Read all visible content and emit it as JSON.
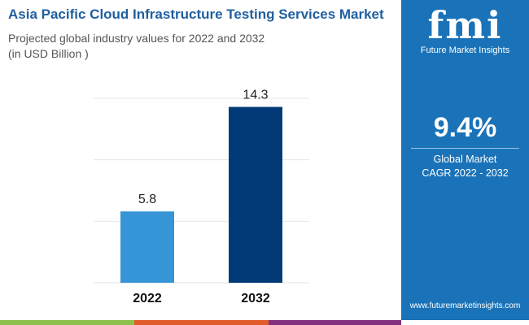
{
  "header": {
    "title": "Asia Pacific Cloud Infrastructure Testing Services Market",
    "subtitle_line1": "Projected global industry values for 2022 and 2032",
    "subtitle_line2": "(in USD Billion )"
  },
  "chart_data": {
    "type": "bar",
    "categories": [
      "2022",
      "2032"
    ],
    "values": [
      5.8,
      14.3
    ],
    "data_labels": [
      "5.8",
      "14.3"
    ],
    "ylim": [
      0,
      15
    ],
    "grid": true,
    "colors": [
      "#3595d6",
      "#023a78"
    ]
  },
  "panel": {
    "logo_text": "fmi",
    "brand": "Future Market Insights",
    "cagr_value": "9.4%",
    "cagr_label_line1": "Global Market",
    "cagr_label_line2": "CAGR 2022 - 2032",
    "url": "www.futuremarketinsights.com",
    "bg_color": "#1a73b8"
  },
  "footer_colors": [
    "#8bc04a",
    "#e05a2a",
    "#83307f"
  ]
}
